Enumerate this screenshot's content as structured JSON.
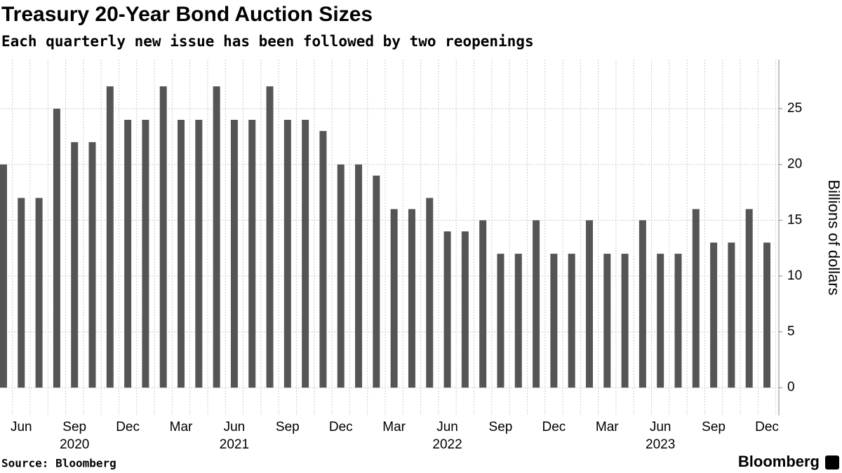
{
  "chart_data": {
    "type": "bar",
    "title": "Treasury 20-Year Bond Auction Sizes",
    "subtitle": "Each quarterly new issue has been followed by two reopenings",
    "y_axis_label": "Billions of dollars",
    "source": "Source: Bloomberg",
    "brand": "Bloomberg",
    "categories": [
      null,
      "Jun",
      null,
      null,
      "Sep",
      null,
      null,
      "Dec",
      null,
      null,
      "Mar",
      null,
      null,
      "Jun",
      null,
      null,
      "Sep",
      null,
      null,
      "Dec",
      null,
      null,
      "Mar",
      null,
      null,
      "Jun",
      null,
      null,
      "Sep",
      null,
      null,
      "Dec",
      null,
      null,
      "Mar",
      null,
      null,
      "Jun",
      null,
      null,
      "Sep",
      null,
      null,
      "Dec"
    ],
    "year_labels": [
      null,
      null,
      null,
      null,
      "2020",
      null,
      null,
      null,
      null,
      null,
      null,
      null,
      null,
      "2021",
      null,
      null,
      null,
      null,
      null,
      null,
      null,
      null,
      null,
      null,
      null,
      "2022",
      null,
      null,
      null,
      null,
      null,
      null,
      null,
      null,
      null,
      null,
      null,
      "2023",
      null,
      null,
      null,
      null,
      null,
      null
    ],
    "values": [
      20,
      17,
      17,
      25,
      22,
      22,
      27,
      24,
      24,
      27,
      24,
      24,
      27,
      24,
      24,
      27,
      24,
      24,
      23,
      20,
      20,
      19,
      16,
      16,
      17,
      14,
      14,
      15,
      12,
      12,
      15,
      12,
      12,
      15,
      12,
      12,
      15,
      12,
      12,
      16,
      13,
      13,
      16,
      13
    ],
    "color": "#555555",
    "ylim": [
      -2.5,
      29.4
    ],
    "yticks": [
      0,
      5,
      10,
      15,
      20,
      25
    ],
    "grid": true
  }
}
